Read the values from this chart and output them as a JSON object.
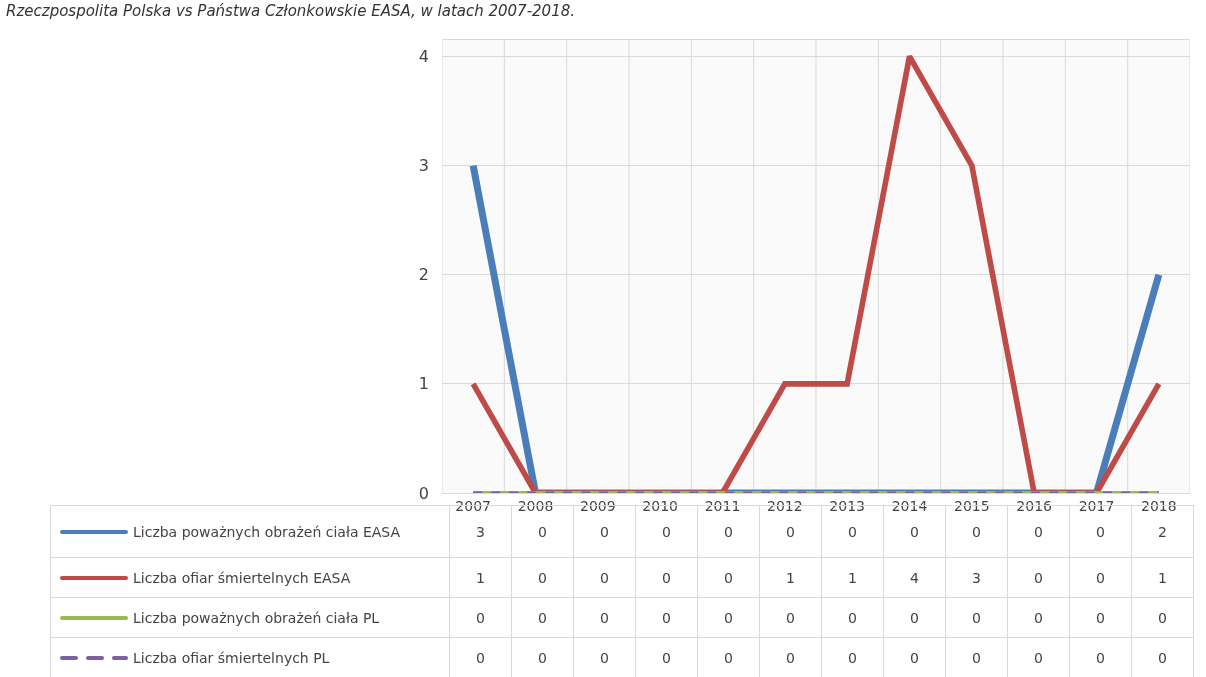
{
  "chart_data": {
    "type": "line",
    "title": "Rzeczpospolita Polska vs Państwa Członkowskie EASA, w latach 2007-2018.",
    "categories": [
      "2007",
      "2008",
      "2009",
      "2010",
      "2011",
      "2012",
      "2013",
      "2014",
      "2015",
      "2016",
      "2017",
      "2018"
    ],
    "series": [
      {
        "name": "Liczba poważnych obrażeń ciała EASA",
        "color": "#4a7ebb",
        "values": [
          3,
          0,
          0,
          0,
          0,
          0,
          0,
          0,
          0,
          0,
          0,
          2
        ]
      },
      {
        "name": "Liczba ofiar śmiertelnych EASA",
        "color": "#be4b48",
        "values": [
          1,
          0,
          0,
          0,
          0,
          1,
          1,
          4,
          3,
          0,
          0,
          1
        ]
      },
      {
        "name": "Liczba poważnych obrażeń ciała PL",
        "color": "#98b954",
        "values": [
          0,
          0,
          0,
          0,
          0,
          0,
          0,
          0,
          0,
          0,
          0,
          0
        ]
      },
      {
        "name": "Liczba ofiar śmiertelnych PL",
        "color": "#7d60a0",
        "line_style": "dashed",
        "values": [
          0,
          0,
          0,
          0,
          0,
          0,
          0,
          0,
          0,
          0,
          0,
          0
        ]
      }
    ],
    "ylim": [
      0,
      4.15
    ],
    "yticks": [
      0,
      1,
      2,
      3,
      4
    ],
    "grid": true,
    "legend": "bottom",
    "data_labels": true,
    "marker": "none",
    "line_style": "solid"
  }
}
